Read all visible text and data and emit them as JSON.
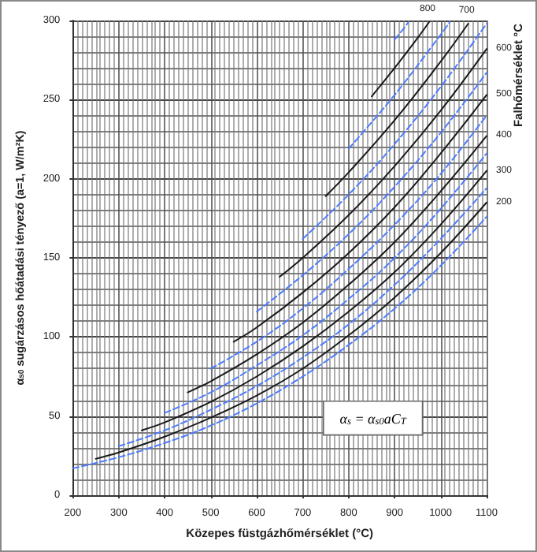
{
  "chart_data": {
    "type": "line",
    "xlabel": "Közepes füstgázhőmérséklet (°C)",
    "ylabel": "α$_{s0}$ sugárzásos hőátadási tényező (a=1, W/m²K)",
    "legend_title": "Falhőmérséklet °C",
    "annotations": [
      "α$_{s}$ = α$_{s0}$aC$_{T}$"
    ],
    "xlim": [
      200,
      1100
    ],
    "xticks": [
      200,
      300,
      400,
      500,
      600,
      700,
      800,
      900,
      1000,
      1100
    ],
    "ylim": [
      0,
      300
    ],
    "yticks": [
      0,
      50,
      100,
      150,
      200,
      250,
      300
    ],
    "grid": true,
    "marker": "none",
    "series": [
      {
        "color": "#4d7cff",
        "line_style": "dashed",
        "x": [
          200,
          300,
          400,
          500,
          600,
          700,
          800,
          900,
          1000,
          1100
        ],
        "values": [
          17,
          24,
          33,
          44,
          58,
          75,
          95,
          118,
          145,
          176
        ]
      },
      {
        "name": "200",
        "color": "#1a1a1a",
        "line_style": "solid",
        "x": [
          250,
          300,
          400,
          500,
          600,
          700,
          800,
          900,
          1000,
          1100
        ],
        "values": [
          23,
          27,
          37,
          49,
          63,
          80,
          101,
          125,
          153,
          185
        ]
      },
      {
        "color": "#4d7cff",
        "line_style": "dashed",
        "x": [
          300,
          400,
          500,
          600,
          700,
          800,
          900,
          1000,
          1100
        ],
        "values": [
          31,
          41,
          54,
          69,
          87,
          108,
          133,
          162,
          194
        ]
      },
      {
        "name": "300",
        "color": "#1a1a1a",
        "line_style": "solid",
        "x": [
          350,
          400,
          500,
          600,
          700,
          800,
          900,
          1000,
          1100
        ],
        "values": [
          41,
          46,
          59,
          75,
          94,
          116,
          141,
          171,
          205
        ]
      },
      {
        "color": "#4d7cff",
        "line_style": "dashed",
        "x": [
          400,
          500,
          600,
          700,
          800,
          900,
          1000,
          1100
        ],
        "values": [
          52,
          65,
          82,
          101,
          124,
          150,
          181,
          216
        ]
      },
      {
        "name": "400",
        "color": "#1a1a1a",
        "line_style": "solid",
        "x": [
          450,
          500,
          600,
          700,
          800,
          900,
          1000,
          1100
        ],
        "values": [
          65,
          72,
          89,
          109,
          133,
          160,
          192,
          227
        ]
      },
      {
        "color": "#4d7cff",
        "line_style": "dashed",
        "x": [
          500,
          600,
          700,
          800,
          900,
          1000,
          1100
        ],
        "values": [
          80,
          97,
          118,
          143,
          171,
          203,
          240
        ]
      },
      {
        "name": "500",
        "color": "#1a1a1a",
        "line_style": "solid",
        "x": [
          550,
          600,
          700,
          800,
          900,
          1000,
          1100
        ],
        "values": [
          97,
          106,
          128,
          153,
          182,
          216,
          253
        ]
      },
      {
        "color": "#4d7cff",
        "line_style": "dashed",
        "x": [
          600,
          700,
          800,
          900,
          1000,
          1100
        ],
        "values": [
          116,
          139,
          165,
          195,
          229,
          267
        ]
      },
      {
        "name": "600",
        "color": "#1a1a1a",
        "line_style": "solid",
        "x": [
          650,
          700,
          800,
          900,
          1000,
          1100
        ],
        "values": [
          138,
          150,
          177,
          208,
          243,
          282
        ]
      },
      {
        "color": "#4d7cff",
        "line_style": "dashed",
        "x": [
          700,
          800,
          900,
          1000,
          1100
        ],
        "values": [
          162,
          190,
          222,
          258,
          298
        ]
      },
      {
        "name": "700",
        "color": "#1a1a1a",
        "line_style": "solid",
        "x": [
          750,
          800,
          900,
          1000,
          1060
        ],
        "values": [
          189,
          204,
          237,
          274,
          298
        ]
      },
      {
        "color": "#4d7cff",
        "line_style": "dashed",
        "x": [
          800,
          900,
          1000,
          1020
        ],
        "values": [
          219,
          253,
          291,
          299
        ]
      },
      {
        "name": "800",
        "color": "#1a1a1a",
        "line_style": "solid",
        "x": [
          850,
          900,
          950,
          975
        ],
        "values": [
          252,
          270,
          289,
          299
        ]
      },
      {
        "color": "#4d7cff",
        "line_style": "dashed",
        "x": [
          900,
          920,
          930
        ],
        "values": [
          288,
          295,
          299
        ]
      }
    ]
  }
}
